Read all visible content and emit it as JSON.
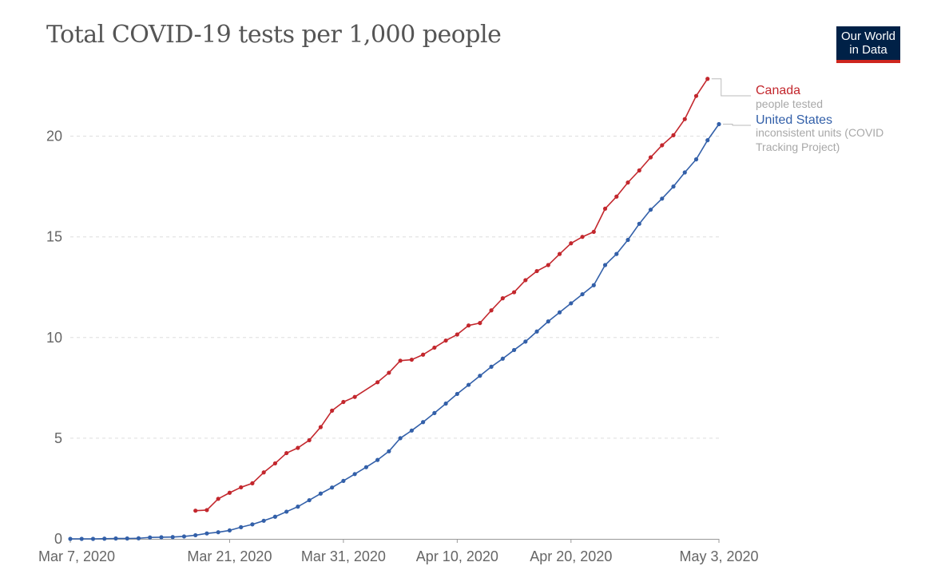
{
  "logo": {
    "line1": "Our World",
    "line2": "in Data"
  },
  "chart_data": {
    "type": "line",
    "title": "Total COVID-19 tests per 1,000 people",
    "xlabel": "",
    "ylabel": "",
    "x_range": [
      "2020-03-07",
      "2020-05-03"
    ],
    "ylim": [
      0,
      22.8
    ],
    "x_ticks": [
      {
        "date": "2020-03-07",
        "label": "Mar 7, 2020"
      },
      {
        "date": "2020-03-21",
        "label": "Mar 21, 2020"
      },
      {
        "date": "2020-03-31",
        "label": "Mar 31, 2020"
      },
      {
        "date": "2020-04-10",
        "label": "Apr 10, 2020"
      },
      {
        "date": "2020-04-20",
        "label": "Apr 20, 2020"
      },
      {
        "date": "2020-05-03",
        "label": "May 3, 2020"
      }
    ],
    "y_ticks": [
      0,
      5,
      10,
      15,
      20
    ],
    "grid": "horizontal dashed",
    "legend_placement": "right, at line ends",
    "series": [
      {
        "name": "Canada",
        "note": "people tested",
        "color": "#c3272d",
        "start_date": "2020-03-18",
        "values": [
          1.4,
          1.43,
          1.99,
          2.29,
          2.56,
          2.76,
          3.3,
          3.75,
          4.26,
          4.52,
          4.9,
          5.55,
          6.37,
          6.8,
          7.05,
          7.78,
          8.25,
          8.85,
          8.9,
          9.15,
          9.5,
          9.85,
          10.15,
          10.6,
          10.72,
          11.35,
          11.95,
          12.25,
          12.85,
          13.3,
          13.6,
          14.15,
          14.68,
          15.0,
          15.25,
          16.4,
          17.0,
          17.7,
          18.3,
          18.95,
          19.55,
          20.05,
          20.85,
          22.0,
          22.85
        ],
        "gaps": [
          "2020-04-02"
        ]
      },
      {
        "name": "United States",
        "note": "inconsistent units (COVID Tracking Project)",
        "color": "#3360a9",
        "start_date": "2020-03-07",
        "values": [
          0.0,
          0.0,
          0.0,
          0.01,
          0.02,
          0.02,
          0.03,
          0.07,
          0.08,
          0.09,
          0.12,
          0.18,
          0.27,
          0.33,
          0.42,
          0.58,
          0.72,
          0.9,
          1.1,
          1.35,
          1.6,
          1.92,
          2.25,
          2.55,
          2.88,
          3.22,
          3.56,
          3.92,
          4.35,
          5.0,
          5.38,
          5.8,
          6.25,
          6.72,
          7.2,
          7.65,
          8.1,
          8.55,
          8.95,
          9.38,
          9.8,
          10.3,
          10.8,
          11.25,
          11.7,
          12.15,
          12.6,
          13.6,
          14.15,
          14.85,
          15.65,
          16.35,
          16.9,
          17.5,
          18.2,
          18.85,
          19.8,
          20.6
        ]
      }
    ]
  }
}
